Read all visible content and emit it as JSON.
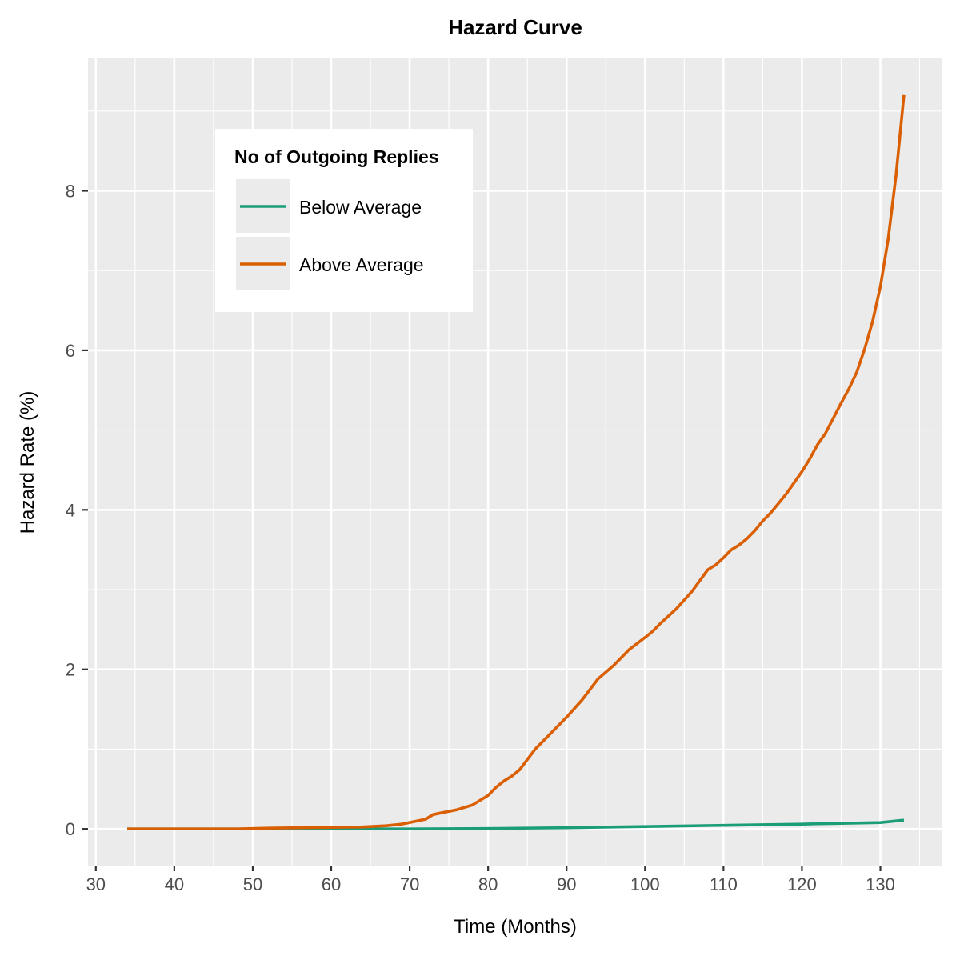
{
  "chart_data": {
    "type": "line",
    "title": "Hazard Curve",
    "xlabel": "Time (Months)",
    "ylabel": "Hazard Rate (%)",
    "xlim": [
      29,
      137.8
    ],
    "ylim": [
      -0.46,
      9.66
    ],
    "xticks": [
      30,
      40,
      50,
      60,
      70,
      80,
      90,
      100,
      110,
      120,
      130
    ],
    "yticks": [
      0,
      2,
      4,
      6,
      8
    ],
    "grid": true,
    "legend": {
      "title": "No of Outgoing Replies",
      "position": "top-left"
    },
    "colors": {
      "panel": "#EBEBEB",
      "grid": "#FFFFFF",
      "below": "#1B9E77",
      "above": "#D95F02"
    },
    "series": [
      {
        "name": "Below Average",
        "color": "#1B9E77",
        "x": [
          34,
          40,
          50,
          60,
          70,
          80,
          90,
          100,
          110,
          120,
          125,
          130,
          133
        ],
        "y": [
          0.0,
          0.0,
          0.0,
          0.0,
          0.0,
          0.005,
          0.015,
          0.03,
          0.045,
          0.06,
          0.07,
          0.08,
          0.11
        ]
      },
      {
        "name": "Above Average",
        "color": "#D95F02",
        "x": [
          34,
          40,
          48,
          52,
          56,
          60,
          64,
          65,
          67,
          69,
          71,
          72,
          73,
          74,
          75,
          76,
          78,
          80,
          81,
          82,
          83,
          84,
          86,
          88,
          90,
          92,
          94,
          96,
          98,
          100,
          101,
          102,
          104,
          106,
          108,
          109,
          110,
          111,
          112,
          113,
          114,
          115,
          116,
          117,
          118,
          119,
          120,
          121,
          122,
          123,
          124,
          125,
          126,
          127,
          128,
          129,
          130,
          131,
          132,
          133
        ],
        "y": [
          0.0,
          0.0,
          0.0,
          0.01,
          0.015,
          0.02,
          0.025,
          0.03,
          0.04,
          0.06,
          0.1,
          0.12,
          0.18,
          0.2,
          0.22,
          0.24,
          0.3,
          0.42,
          0.52,
          0.6,
          0.66,
          0.74,
          1.0,
          1.2,
          1.4,
          1.62,
          1.88,
          2.05,
          2.25,
          2.4,
          2.48,
          2.58,
          2.76,
          2.98,
          3.25,
          3.31,
          3.4,
          3.5,
          3.56,
          3.64,
          3.74,
          3.86,
          3.96,
          4.08,
          4.2,
          4.34,
          4.48,
          4.64,
          4.82,
          4.96,
          5.15,
          5.34,
          5.52,
          5.73,
          6.02,
          6.36,
          6.8,
          7.4,
          8.2,
          9.2
        ]
      }
    ]
  }
}
